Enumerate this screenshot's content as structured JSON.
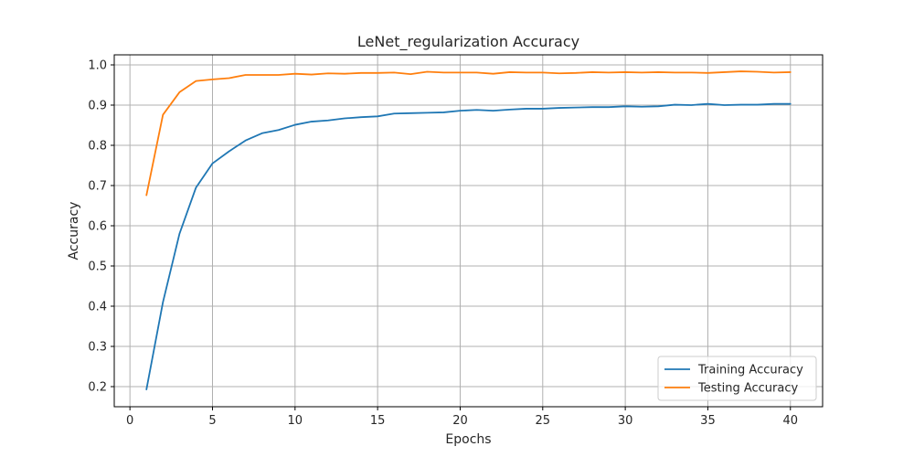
{
  "chart_data": {
    "type": "line",
    "title": "LeNet_regularization Accuracy",
    "xlabel": "Epochs",
    "ylabel": "Accuracy",
    "xlim": [
      -0.95,
      41.95
    ],
    "ylim": [
      0.15,
      1.025
    ],
    "xticks": [
      0,
      5,
      10,
      15,
      20,
      25,
      30,
      35,
      40
    ],
    "yticks": [
      0.2,
      0.3,
      0.4,
      0.5,
      0.6,
      0.7,
      0.8,
      0.9,
      1.0
    ],
    "ytick_labels": [
      "0.2",
      "0.3",
      "0.4",
      "0.5",
      "0.6",
      "0.7",
      "0.8",
      "0.9",
      "1.0"
    ],
    "grid": true,
    "legend_position": "lower-right",
    "x": [
      1,
      2,
      3,
      4,
      5,
      6,
      7,
      8,
      9,
      10,
      11,
      12,
      13,
      14,
      15,
      16,
      17,
      18,
      19,
      20,
      21,
      22,
      23,
      24,
      25,
      26,
      27,
      28,
      29,
      30,
      31,
      32,
      33,
      34,
      35,
      36,
      37,
      38,
      39,
      40
    ],
    "series": [
      {
        "name": "Training Accuracy",
        "color": "#1f77b4",
        "values": [
          0.193,
          0.41,
          0.58,
          0.695,
          0.755,
          0.785,
          0.812,
          0.83,
          0.838,
          0.851,
          0.859,
          0.862,
          0.867,
          0.87,
          0.872,
          0.879,
          0.88,
          0.881,
          0.882,
          0.886,
          0.888,
          0.886,
          0.889,
          0.891,
          0.891,
          0.893,
          0.894,
          0.895,
          0.895,
          0.897,
          0.896,
          0.897,
          0.901,
          0.9,
          0.903,
          0.9,
          0.901,
          0.901,
          0.903,
          0.903
        ]
      },
      {
        "name": "Testing Accuracy",
        "color": "#ff7f0e",
        "values": [
          0.676,
          0.876,
          0.932,
          0.96,
          0.964,
          0.967,
          0.975,
          0.975,
          0.975,
          0.978,
          0.976,
          0.979,
          0.978,
          0.98,
          0.98,
          0.981,
          0.977,
          0.983,
          0.981,
          0.981,
          0.981,
          0.978,
          0.982,
          0.981,
          0.981,
          0.979,
          0.98,
          0.982,
          0.981,
          0.982,
          0.981,
          0.982,
          0.981,
          0.981,
          0.98,
          0.982,
          0.984,
          0.983,
          0.981,
          0.982
        ]
      }
    ]
  }
}
